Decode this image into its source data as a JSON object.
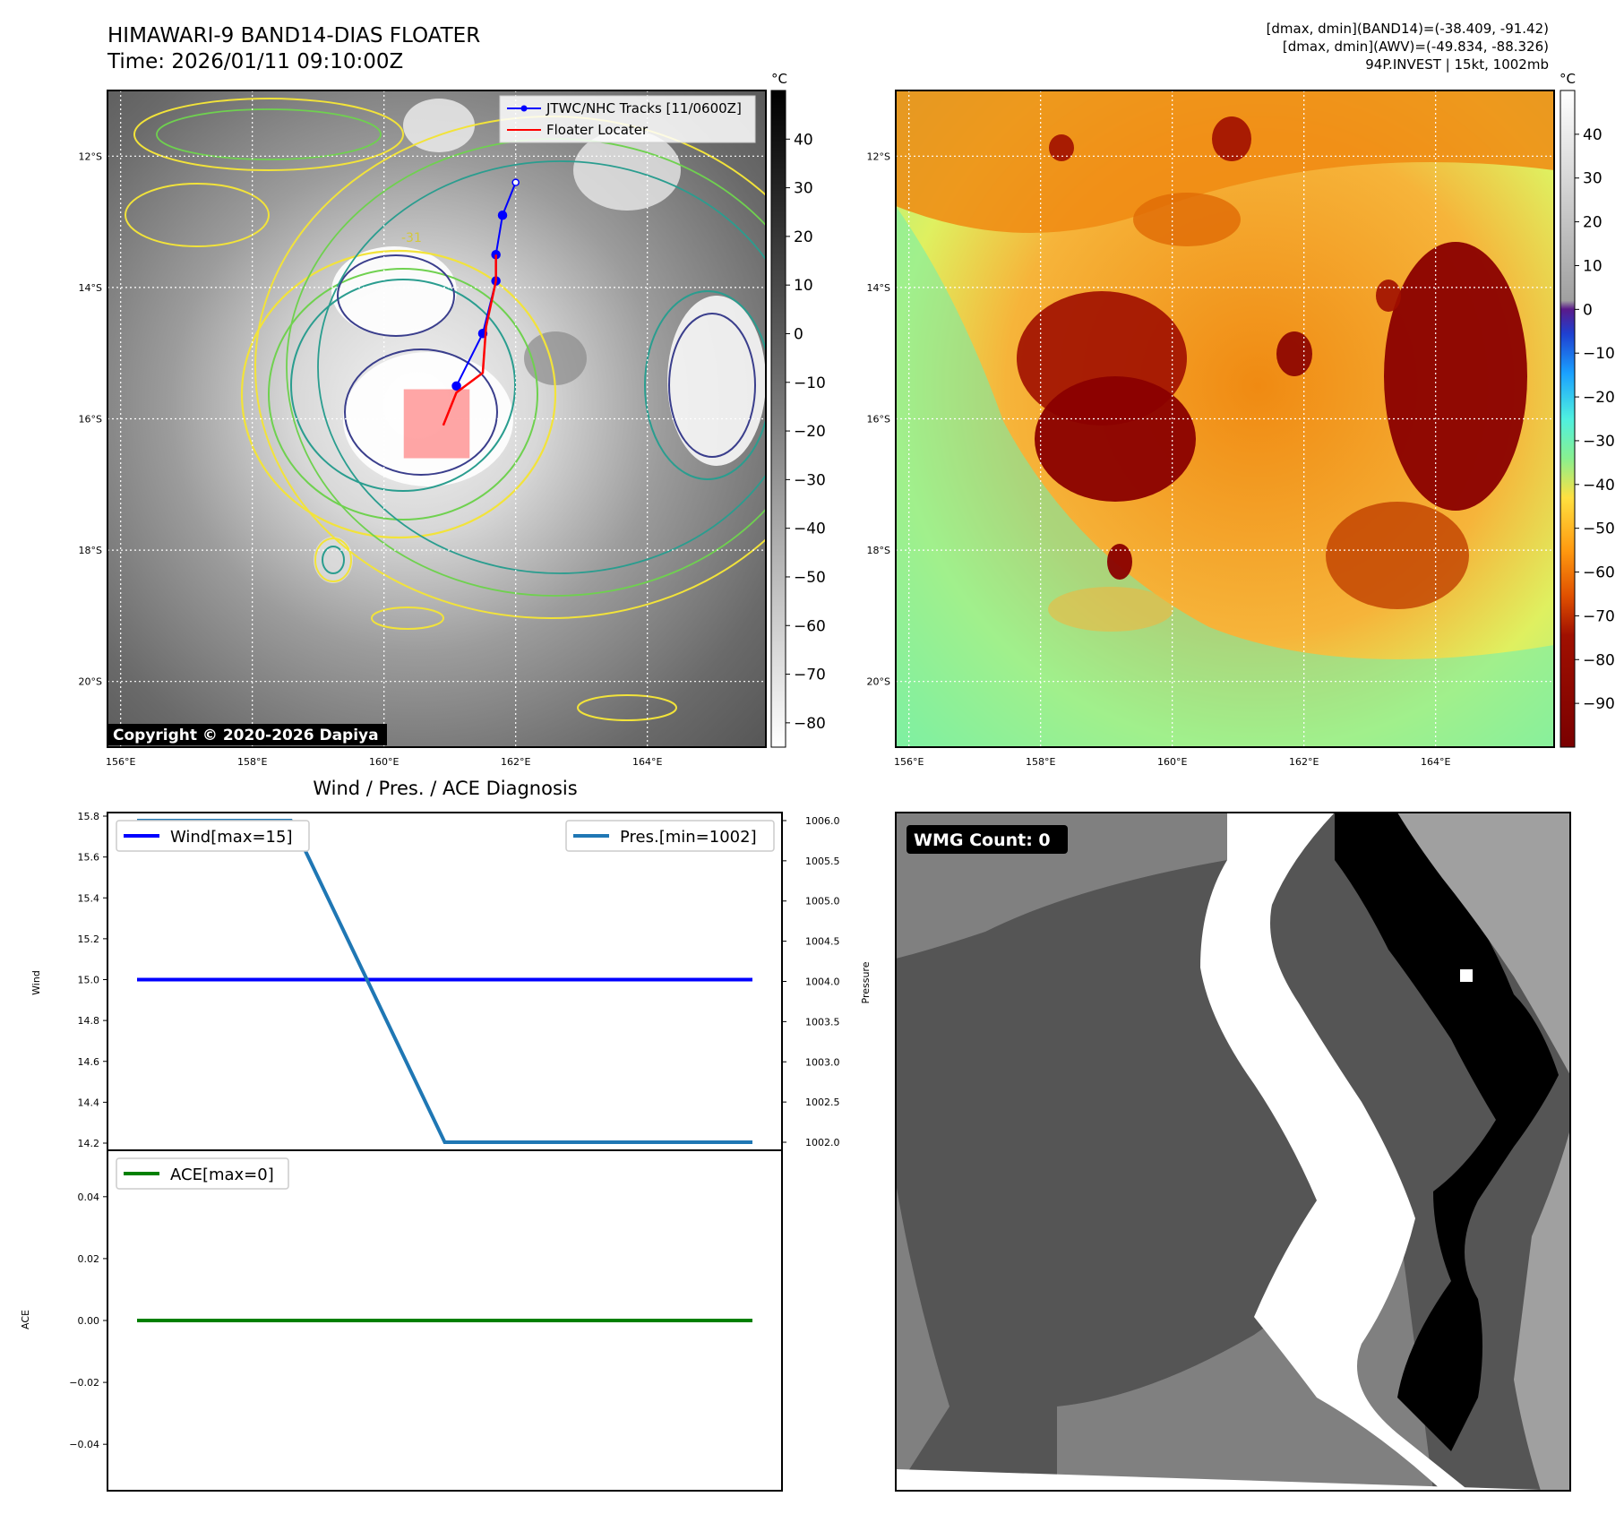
{
  "header": {
    "title_line1": "HIMAWARI-9 BAND14-DIAS FLOATER",
    "title_line2": "Time: 2026/01/11 09:10:00Z",
    "info_line1": "[dmax, dmin](BAND14)=(-38.409, -91.42)",
    "info_line2": "[dmax, dmin](AWV)=(-49.834, -88.326)",
    "info_line3": "94P.INVEST | 15kt, 1002mb"
  },
  "colors": {
    "track_blue": "#0000ff",
    "locator_red": "#ff0000",
    "wind_line": "#0000ff",
    "pressure_line": "#1f77b4",
    "ace_line": "#008000",
    "contour_yellow": "#f2e33a",
    "contour_green": "#6fd14f",
    "contour_teal": "#2a9d8f",
    "contour_navy": "#3a3e8c"
  },
  "chart_data": [
    {
      "type": "heatmap",
      "panel": "band14-dias",
      "lat_ticks": [
        "12°S",
        "14°S",
        "16°S",
        "18°S",
        "20°S"
      ],
      "lon_ticks": [
        "156°E",
        "158°E",
        "160°E",
        "162°E",
        "164°E"
      ],
      "lat_range": [
        -21.0,
        -11.0
      ],
      "lon_range": [
        155.8,
        165.8
      ],
      "colorbar_unit": "°C",
      "colorbar_ticks": [
        40,
        30,
        20,
        10,
        0,
        -10,
        -20,
        -30,
        -40,
        -50,
        -60,
        -70,
        -80
      ],
      "colorbar_range": [
        -85,
        50
      ],
      "contour_label": "-31",
      "legend": [
        "JTWC/NHC Tracks [11/0600Z]",
        "Floater Locater"
      ],
      "copyright": "Copyright © 2020-2026 Dapiya",
      "jtwc_track": {
        "lon": [
          162.0,
          161.8,
          161.7,
          161.7,
          161.5,
          161.1
        ],
        "lat": [
          -12.4,
          -12.9,
          -13.5,
          -13.9,
          -14.7,
          -15.5
        ]
      },
      "floater_locator": {
        "lon": [
          161.7,
          161.7,
          161.55,
          161.5,
          161.1,
          160.9
        ],
        "lat": [
          -13.5,
          -13.9,
          -14.6,
          -15.3,
          -15.6,
          -16.1
        ]
      },
      "floater_box": {
        "lon": [
          160.3,
          161.3
        ],
        "lat": [
          -16.6,
          -15.55
        ]
      }
    },
    {
      "type": "heatmap",
      "panel": "awv",
      "lat_ticks": [
        "12°S",
        "14°S",
        "16°S",
        "18°S",
        "20°S"
      ],
      "lon_ticks": [
        "156°E",
        "158°E",
        "160°E",
        "162°E",
        "164°E"
      ],
      "lat_range": [
        -21.0,
        -11.0
      ],
      "lon_range": [
        155.8,
        165.8
      ],
      "colorbar_unit": "°C",
      "colorbar_ticks": [
        40,
        30,
        20,
        10,
        0,
        -10,
        -20,
        -30,
        -40,
        -50,
        -60,
        -70,
        -80,
        -90
      ],
      "colorbar_range": [
        -100,
        50
      ]
    },
    {
      "type": "line",
      "panel": "wind-pressure",
      "title": "Wind / Pres. / ACE Diagnosis",
      "ylabel": "Wind",
      "y2label": "Pressure",
      "ylim": [
        14.2,
        15.8
      ],
      "y_ticks": [
        "15.8",
        "15.6",
        "15.4",
        "15.2",
        "15.0",
        "14.8",
        "14.6",
        "14.4",
        "14.2"
      ],
      "y2lim": [
        1001.9,
        1006.1
      ],
      "y2_ticks": [
        "1006.0",
        "1005.5",
        "1005.0",
        "1004.5",
        "1004.0",
        "1003.5",
        "1003.0",
        "1002.5",
        "1002.0"
      ],
      "x": [
        0,
        1,
        2,
        3,
        4
      ],
      "series": [
        {
          "name": "Wind[max=15]",
          "axis": "left",
          "values": [
            15,
            15,
            15,
            15,
            15
          ]
        },
        {
          "name": "Pres.[min=1002]",
          "axis": "right",
          "values": [
            1006,
            1006,
            1002,
            1002,
            1002
          ]
        }
      ]
    },
    {
      "type": "line",
      "panel": "ace",
      "ylabel": "ACE",
      "ylim": [
        -0.055,
        0.055
      ],
      "y_ticks": [
        "0.04",
        "0.02",
        "0.00",
        "-0.02",
        "-0.04"
      ],
      "x": [
        0,
        1,
        2,
        3,
        4
      ],
      "series": [
        {
          "name": "ACE[max=0]",
          "values": [
            0,
            0,
            0,
            0,
            0
          ]
        }
      ]
    },
    {
      "type": "heatmap",
      "panel": "wmg",
      "label": "WMG Count: 0"
    }
  ]
}
